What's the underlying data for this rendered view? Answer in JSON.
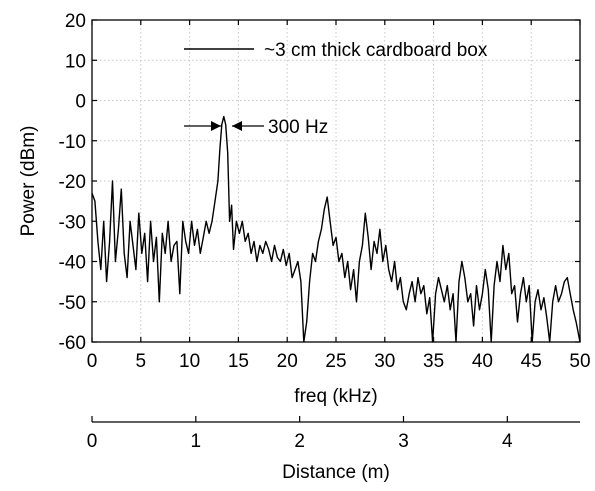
{
  "chart_data": {
    "type": "line",
    "title": "",
    "xlabel": "freq (kHz)",
    "ylabel": "Power (dBm)",
    "xlim": [
      0,
      50
    ],
    "ylim": [
      -60,
      20
    ],
    "x_ticks": [
      0,
      5,
      10,
      15,
      20,
      25,
      30,
      35,
      40,
      45,
      50
    ],
    "y_ticks": [
      20,
      10,
      0,
      -10,
      -20,
      -30,
      -40,
      -50,
      -60
    ],
    "grid": true,
    "legend_position": "top-right",
    "series": [
      {
        "name": "~3 cm thick cardboard box",
        "color": "#000000",
        "x": [
          0.0,
          0.3,
          0.6,
          0.9,
          1.2,
          1.5,
          1.8,
          2.1,
          2.4,
          2.7,
          3.0,
          3.3,
          3.6,
          3.9,
          4.2,
          4.5,
          4.8,
          5.1,
          5.4,
          5.7,
          6.0,
          6.3,
          6.6,
          6.9,
          7.2,
          7.5,
          7.8,
          8.1,
          8.4,
          8.7,
          9.0,
          9.3,
          9.6,
          9.9,
          10.2,
          10.5,
          10.8,
          11.1,
          11.4,
          11.7,
          12.0,
          12.3,
          12.6,
          12.9,
          13.1,
          13.3,
          13.5,
          13.7,
          13.9,
          14.1,
          14.3,
          14.5,
          14.8,
          15.1,
          15.4,
          15.7,
          16.0,
          16.3,
          16.6,
          16.9,
          17.2,
          17.5,
          17.8,
          18.1,
          18.4,
          18.7,
          19.0,
          19.3,
          19.6,
          19.9,
          20.2,
          20.5,
          20.8,
          21.1,
          21.4,
          21.7,
          22.0,
          22.3,
          22.6,
          22.9,
          23.2,
          23.5,
          23.8,
          24.1,
          24.4,
          24.7,
          25.0,
          25.3,
          25.6,
          25.9,
          26.2,
          26.5,
          26.8,
          27.1,
          27.4,
          27.7,
          28.0,
          28.3,
          28.6,
          28.9,
          29.2,
          29.5,
          29.8,
          30.1,
          30.4,
          30.7,
          31.0,
          31.3,
          31.6,
          31.9,
          32.2,
          32.5,
          32.8,
          33.1,
          33.4,
          33.7,
          34.0,
          34.3,
          34.6,
          34.9,
          35.2,
          35.5,
          35.8,
          36.1,
          36.4,
          36.7,
          37.0,
          37.3,
          37.6,
          37.9,
          38.2,
          38.5,
          38.8,
          39.1,
          39.4,
          39.7,
          40.0,
          40.3,
          40.6,
          40.9,
          41.2,
          41.5,
          41.8,
          42.1,
          42.4,
          42.7,
          43.0,
          43.3,
          43.6,
          43.9,
          44.2,
          44.5,
          44.8,
          45.1,
          45.4,
          45.7,
          46.0,
          46.3,
          46.6,
          46.9,
          47.2,
          47.5,
          47.8,
          48.1,
          48.4,
          48.7,
          49.0,
          49.3,
          49.6,
          50.0
        ],
        "y": [
          -23,
          -25,
          -35,
          -42,
          -30,
          -45,
          -35,
          -20,
          -40,
          -32,
          -22,
          -38,
          -44,
          -30,
          -36,
          -42,
          -28,
          -38,
          -33,
          -45,
          -30,
          -40,
          -34,
          -50,
          -33,
          -38,
          -30,
          -40,
          -36,
          -35,
          -48,
          -30,
          -35,
          -38,
          -30,
          -36,
          -32,
          -38,
          -34,
          -30,
          -33,
          -30,
          -25,
          -20,
          -12,
          -6,
          -4,
          -6,
          -13,
          -30,
          -26,
          -37,
          -30,
          -33,
          -30,
          -35,
          -33,
          -38,
          -35,
          -40,
          -36,
          -38,
          -35,
          -37,
          -40,
          -36,
          -39,
          -40,
          -37,
          -41,
          -38,
          -44,
          -42,
          -40,
          -45,
          -60,
          -55,
          -45,
          -38,
          -40,
          -35,
          -32,
          -27,
          -24,
          -30,
          -36,
          -34,
          -40,
          -38,
          -44,
          -40,
          -47,
          -42,
          -50,
          -40,
          -36,
          -28,
          -34,
          -42,
          -35,
          -38,
          -32,
          -40,
          -36,
          -42,
          -45,
          -40,
          -47,
          -44,
          -50,
          -52,
          -48,
          -45,
          -50,
          -44,
          -48,
          -46,
          -53,
          -49,
          -60,
          -48,
          -44,
          -47,
          -50,
          -46,
          -52,
          -48,
          -60,
          -45,
          -40,
          -44,
          -50,
          -48,
          -56,
          -46,
          -52,
          -48,
          -42,
          -47,
          -60,
          -46,
          -40,
          -45,
          -36,
          -42,
          -38,
          -48,
          -46,
          -55,
          -48,
          -44,
          -50,
          -46,
          -60,
          -50,
          -47,
          -52,
          -49,
          -54,
          -60,
          -50,
          -46,
          -50,
          -48,
          -45,
          -44,
          -48,
          -52,
          -55,
          -60
        ]
      }
    ],
    "annotations": [
      {
        "text": "300 Hz",
        "x": 13.7,
        "y": -7,
        "kind": "width-arrows"
      }
    ],
    "secondary_axis": {
      "label": "Distance (m)",
      "ticks": [
        0,
        1,
        2,
        3,
        4
      ],
      "range": [
        0,
        4.7
      ]
    }
  }
}
